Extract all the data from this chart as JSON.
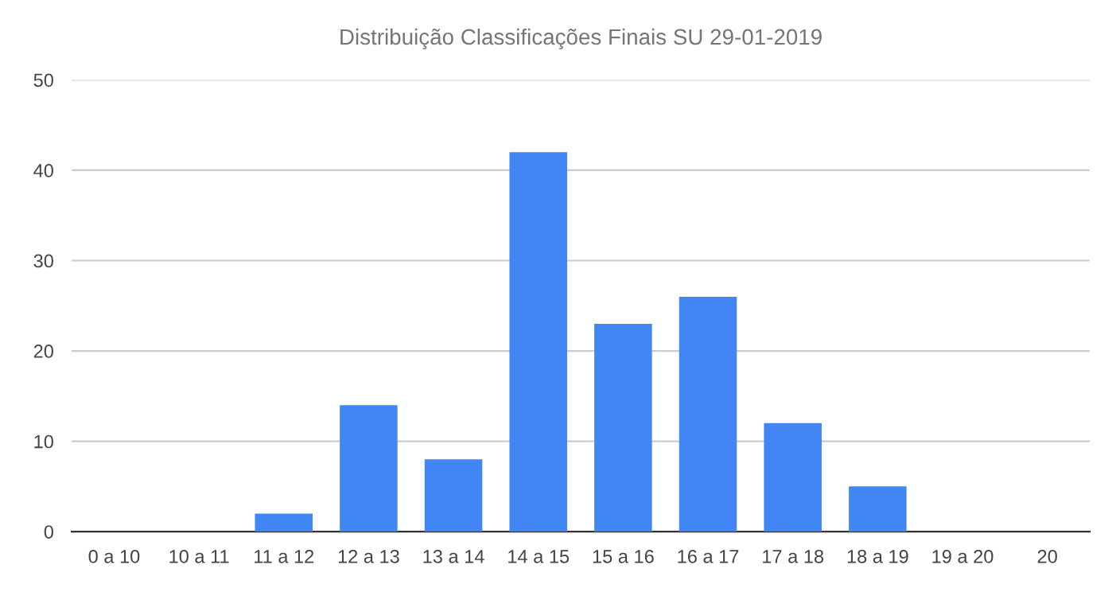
{
  "chart_data": {
    "type": "bar",
    "title": "Distribuição Classificações Finais SU 29-01-2019",
    "categories": [
      "0 a 10",
      "10 a 11",
      "11 a 12",
      "12 a 13",
      "13 a 14",
      "14 a 15",
      "15 a 16",
      "16 a 17",
      "17 a 18",
      "18 a 19",
      "19 a 20",
      "20"
    ],
    "values": [
      0,
      0,
      2,
      14,
      8,
      42,
      23,
      26,
      12,
      5,
      0,
      0
    ],
    "color": "#4285f4",
    "ylim": [
      0,
      50
    ],
    "yticks": [
      0,
      10,
      20,
      30,
      40,
      50
    ],
    "grid": "y"
  }
}
